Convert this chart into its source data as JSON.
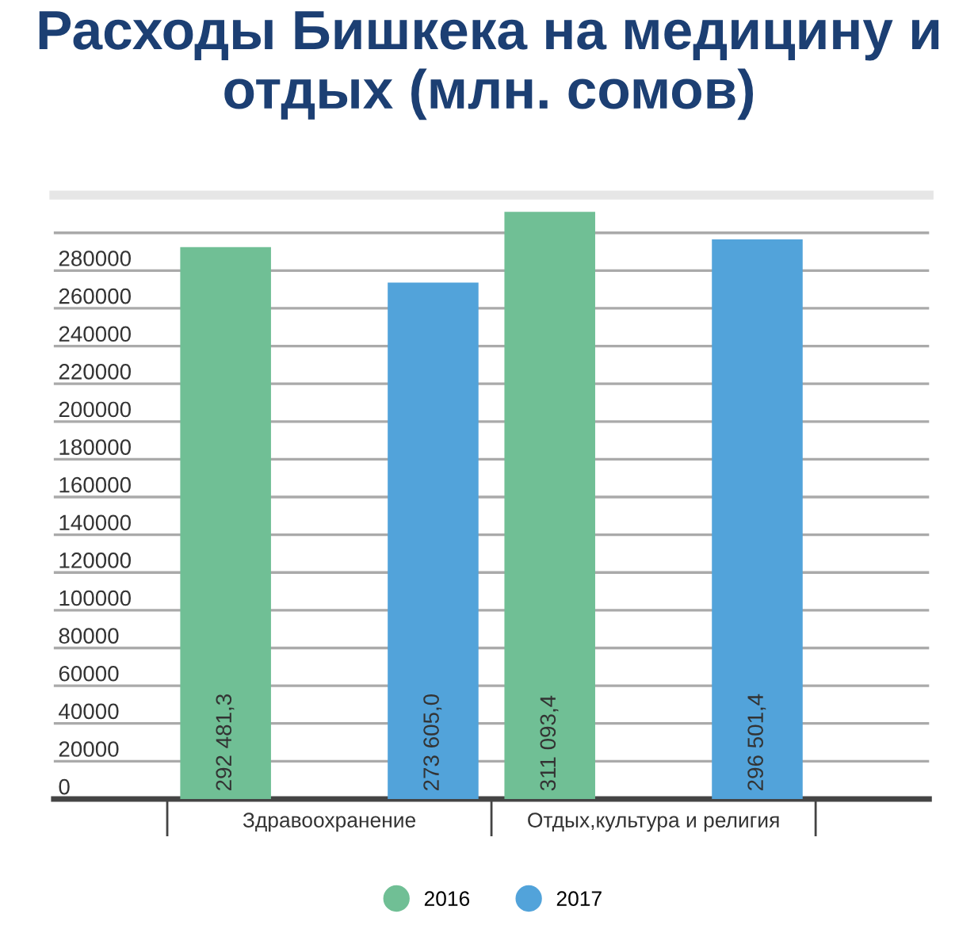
{
  "chart_data": {
    "type": "bar",
    "title": "Расходы Бишкека на медицину и отдых (млн. сомов)",
    "categories": [
      "Здравоохранение",
      "Отдых,культура и религия"
    ],
    "series": [
      {
        "name": "2016",
        "color": "#70bf95",
        "values": [
          292481.3,
          311093.4
        ],
        "value_labels": [
          "292 481,3",
          "311 093,4"
        ]
      },
      {
        "name": "2017",
        "color": "#52a3da",
        "values": [
          273605.0,
          296501.4
        ],
        "value_labels": [
          "273 605,0",
          "296 501,4"
        ]
      }
    ],
    "ylim": [
      0,
      320000
    ],
    "yticks": [
      0,
      20000,
      40000,
      60000,
      80000,
      100000,
      120000,
      140000,
      160000,
      180000,
      200000,
      220000,
      240000,
      260000,
      280000,
      {
        "value": 300000,
        "label": null
      }
    ],
    "grid": "y",
    "legend": "bottom"
  }
}
